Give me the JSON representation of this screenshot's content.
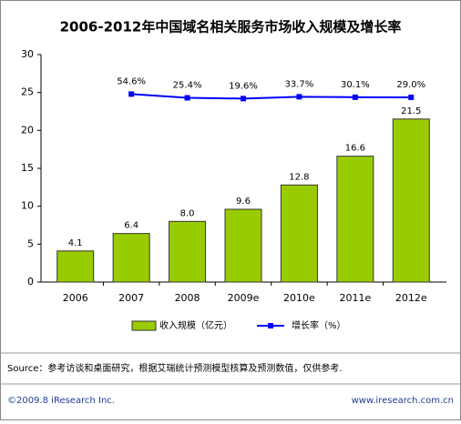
{
  "chart_data": {
    "type": "bar",
    "title": "2006-2012年中国域名相关服务市场收入规模及增长率",
    "categories": [
      "2006",
      "2007",
      "2008",
      "2009e",
      "2010e",
      "2011e",
      "2012e"
    ],
    "series": [
      {
        "name": "收入规模（亿元）",
        "color": "#99cc00",
        "values": [
          4.1,
          6.4,
          8.0,
          9.6,
          12.8,
          16.6,
          21.5
        ],
        "value_labels": [
          "4.1",
          "6.4",
          "8.0",
          "9.6",
          "12.8",
          "16.6",
          "21.5"
        ]
      },
      {
        "name": "增长率（%）",
        "color": "#0000ff",
        "type": "line",
        "axis": "y2",
        "values": [
          null,
          54.6,
          25.4,
          19.6,
          33.7,
          30.1,
          29.0
        ],
        "value_labels": [
          null,
          "54.6%",
          "25.4%",
          "19.6%",
          "33.7%",
          "30.1%",
          "29.0%"
        ]
      }
    ],
    "ylim": [
      0,
      30
    ],
    "yticks": [
      0,
      5,
      10,
      15,
      20,
      25,
      30
    ],
    "y2lim": [
      -1404,
      361
    ],
    "source": "Source：参考访谈和桌面研究，根据艾瑞统计预测模型核算及预测数值，仅供参考.",
    "copyright": "©2009.8 iResearch Inc.",
    "website": "www.iresearch.com.cn"
  }
}
